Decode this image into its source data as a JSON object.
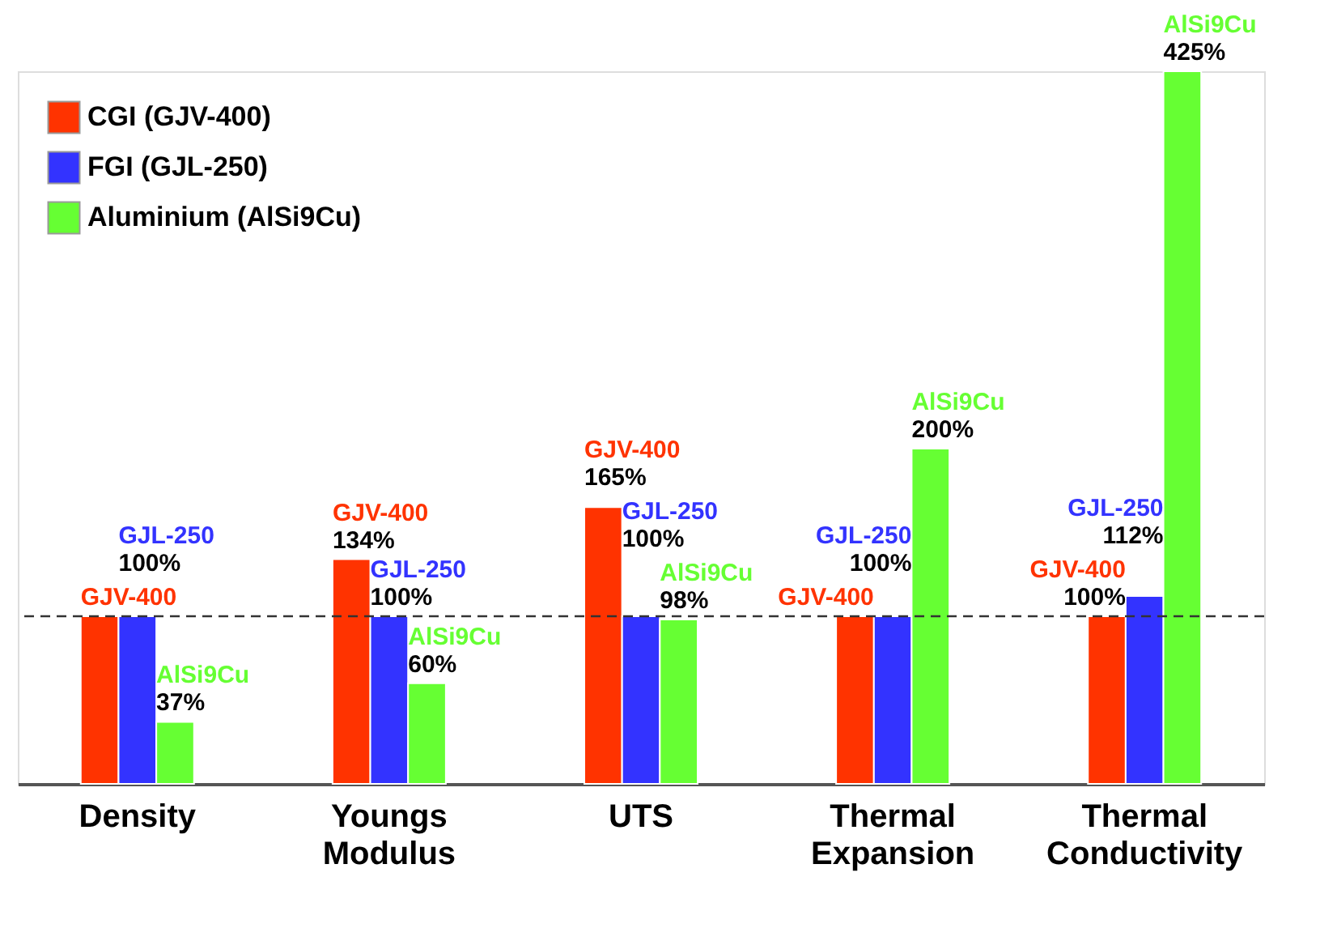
{
  "chart_data": {
    "type": "bar",
    "categories": [
      "Density",
      "Youngs Modulus",
      "UTS",
      "Thermal Expansion",
      "Thermal Conductivity"
    ],
    "series": [
      {
        "name": "CGI (GJV-400)",
        "color": "#ff3300",
        "values": [
          100,
          134,
          165,
          100,
          100
        ],
        "value_labels": [
          "GJV-400",
          "GJV-400\n134%",
          "GJV-400\n165%",
          "GJV-400",
          "GJV-400\n100%"
        ]
      },
      {
        "name": "FGI (GJL-250)",
        "color": "#3333ff",
        "values": [
          100,
          100,
          100,
          100,
          112
        ],
        "value_labels": [
          "GJL-250\n100%",
          "GJL-250\n100%",
          "GJL-250\n100%",
          "GJL-250\n100%",
          "GJL-250\n112%"
        ]
      },
      {
        "name": "Aluminium (AlSi9Cu)",
        "color": "#66ff33",
        "values": [
          37,
          60,
          98,
          200,
          425
        ],
        "value_labels": [
          "AlSi9Cu\n37%",
          "AlSi9Cu\n60%",
          "AlSi9Cu\n98%",
          "AlSi9Cu\n200%",
          "AlSi9Cu\n425%"
        ]
      }
    ],
    "ref_lines": [
      {
        "axis": "y",
        "value": 100,
        "color": "#333333",
        "line_style": "dashed"
      }
    ],
    "legend": "top left"
  }
}
